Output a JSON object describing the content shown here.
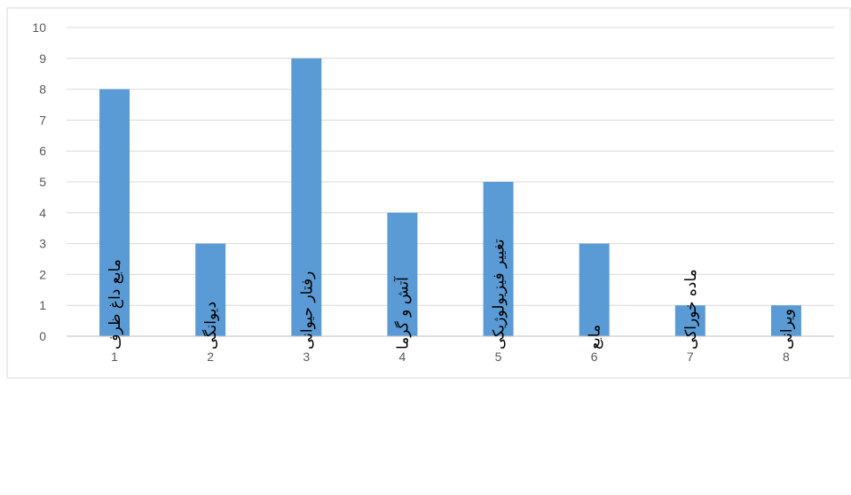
{
  "chart_data": {
    "type": "bar",
    "title": "",
    "xlabel": "",
    "ylabel": "",
    "ylim": [
      0,
      10
    ],
    "yticks": [
      0,
      1,
      2,
      3,
      4,
      5,
      6,
      7,
      8,
      9,
      10
    ],
    "grid": true,
    "legend": "none",
    "categories": [
      {
        "number": "1",
        "label": "مایع داغ ظرف"
      },
      {
        "number": "2",
        "label": "دیوانگی"
      },
      {
        "number": "3",
        "label": "رفتار حیوانی"
      },
      {
        "number": "4",
        "label": "آتش و گرما"
      },
      {
        "number": "5",
        "label": "تغییر فیزیولوژیکی"
      },
      {
        "number": "6",
        "label": "مایع"
      },
      {
        "number": "7",
        "label": "ماده خوراکی"
      },
      {
        "number": "8",
        "label": "ویرانی"
      }
    ],
    "values": [
      8,
      3,
      9,
      4,
      5,
      3,
      1,
      1
    ],
    "colors": {
      "bar": "#5b9bd5",
      "gridline": "#d9d9d9",
      "axis": "#bfbfbf",
      "frame": "#d9d9d9"
    }
  }
}
